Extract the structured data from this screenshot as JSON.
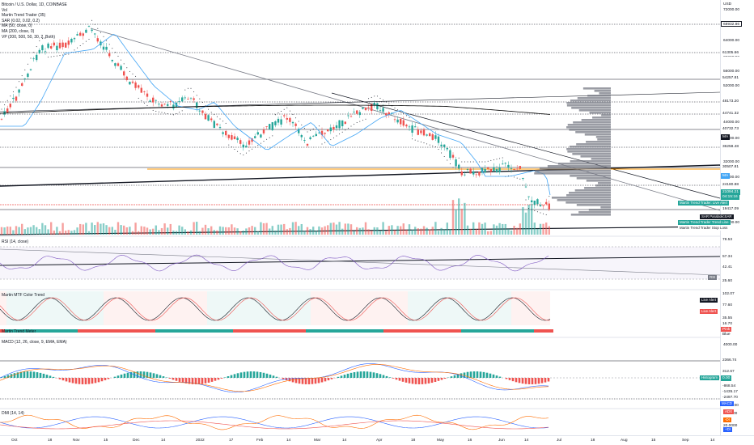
{
  "main_legend": {
    "symbol_line": "Bitcoin / U.S. Dollar, 1D, COINBASE",
    "indicators": [
      "Vol",
      "Martin Trend Trader (35)",
      "SAR (0.02, 0.02, 0.2)",
      "MA (50, close, 0)",
      "MA (200, close, 0)",
      "VP (200, 500, 50, 30, 2, Both)"
    ]
  },
  "panes": {
    "rsi_title": "RSI (14, close)",
    "martin_title": "Martin MTF Color Trend",
    "mtf_title": "Martin Trend Meter",
    "macd_title": "MACD (12, 26, close, 9, EMA, EMA)",
    "dmi_title": "DMI (14, 14)"
  },
  "price_scale": {
    "currency": "USD",
    "ticks": [
      "72000.00",
      "64000.00",
      "60000.00",
      "56000.00",
      "52000.00",
      "44000.00",
      "40000.00",
      "32000.00",
      "28000.00",
      "16000.00",
      "12000.00"
    ],
    "levels": [
      "68932.86",
      "61305.66",
      "54257.81",
      "48173.20",
      "44741.32",
      "40732.73",
      "36258.48",
      "30507.81",
      "24180.88",
      "19417.09"
    ],
    "badges": {
      "ma": "MA",
      "ma2": "MA",
      "price_a": "21094.21",
      "price_b": "04:15:16",
      "live_alert": "Martin Trend Trader: Live Alert",
      "sar": "SAR ParabolicSAR",
      "trend_line": "Martin Trend Trader Trend Line",
      "stop_loss": "Martin Trend Trader Stop Loss"
    }
  },
  "rsi_scale": {
    "levels": [
      "78.53",
      "57.34",
      "42.41",
      "25.60"
    ],
    "badge": "RSI"
  },
  "martin_scale": {
    "levels": [
      "102.07",
      "77.60",
      "35.55",
      "16.70"
    ],
    "live_alert": "Live Alert",
    "live_alert2": "Live Alert",
    "pink": "Pink",
    "blue": "Blue"
  },
  "macd_scale": {
    "ticks": [
      "4000.00",
      "-4000.00"
    ],
    "levels": [
      "2366.74",
      "312.67",
      "0.00",
      "-868.54",
      "-1435.17",
      "-2497.70"
    ],
    "histogram": "Histogram",
    "macd": "MACD",
    "signal": "Signal"
  },
  "dmi_scale": {
    "ticks": [
      "40.0000",
      "20.0000"
    ],
    "adx": "ADX",
    "di_plus": "+DI",
    "di_minus": "-DI"
  },
  "time_axis": [
    "Oct",
    "18",
    "Nov",
    "15",
    "Dec",
    "14",
    "2022",
    "17",
    "Feb",
    "14",
    "Mar",
    "14",
    "Apr",
    "18",
    "May",
    "16",
    "Jun",
    "14",
    "Jul",
    "18",
    "Aug",
    "15",
    "Sep",
    "14"
  ],
  "colors": {
    "bull": "#26a69a",
    "bear": "#ef5350",
    "ma50": "#42a5f5",
    "ma200": "#000000",
    "vp": "#787b86",
    "rsi_line": "#7e57c2",
    "macd_line": "#2962ff",
    "signal_line": "#ff6d00",
    "dmi_plus": "#2962ff",
    "dmi_minus": "#ff6d00"
  }
}
